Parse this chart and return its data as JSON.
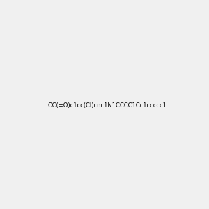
{
  "smiles": "OC(=O)c1cc(Cl)cnc1N1CCCC1Cc1ccccc1",
  "title": "",
  "bg_color": "#f0f0f0",
  "bond_color": "#000000",
  "N_color": "#0000cc",
  "O_color": "#cc0000",
  "Cl_color": "#00cc00",
  "H_color": "#888888",
  "font_size": 11
}
